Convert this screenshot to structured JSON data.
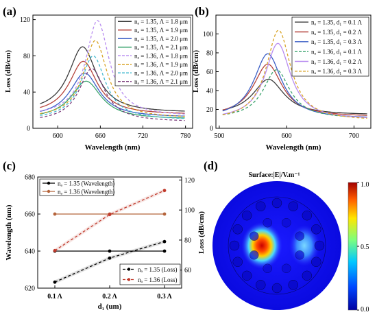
{
  "panels": {
    "a": {
      "label": "(a)"
    },
    "b": {
      "label": "(b)"
    },
    "c": {
      "label": "(c)"
    },
    "d": {
      "label": "(d)"
    }
  },
  "chart_data": [
    {
      "id": "a",
      "type": "line",
      "xlabel": "Wavelength (nm)",
      "ylabel": "Loss (dB/cm)",
      "xlim": [
        565,
        790
      ],
      "ylim": [
        0,
        125
      ],
      "xticks": [
        600,
        660,
        720,
        780
      ],
      "yticks": [
        0,
        40,
        80,
        120
      ],
      "legend_position": "top-right",
      "series": [
        {
          "name": "nₐ = 1.35, Λ = 1.8 μm",
          "color": "#3a3a3a",
          "dashed": false,
          "peak_x": 635,
          "peak_y": 90,
          "width": 24,
          "base": 17
        },
        {
          "name": "nₐ = 1.35, Λ = 1.9 μm",
          "color": "#b5433b",
          "dashed": false,
          "peak_x": 636,
          "peak_y": 74,
          "width": 24,
          "base": 15
        },
        {
          "name": "nₐ = 1.35, Λ = 2.0 μm",
          "color": "#3c5fc6",
          "dashed": false,
          "peak_x": 638,
          "peak_y": 61,
          "width": 25,
          "base": 12
        },
        {
          "name": "nₐ = 1.35, Λ = 2.1 μm",
          "color": "#39a36c",
          "dashed": false,
          "peak_x": 640,
          "peak_y": 52,
          "width": 26,
          "base": 10
        },
        {
          "name": "nₐ = 1.36, Λ = 1.8 μm",
          "color": "#b78bf0",
          "dashed": true,
          "peak_x": 656,
          "peak_y": 119,
          "width": 20,
          "base": 13
        },
        {
          "name": "nₐ = 1.36, Λ = 1.9 μm",
          "color": "#d8a325",
          "dashed": true,
          "peak_x": 653,
          "peak_y": 97,
          "width": 20,
          "base": 11
        },
        {
          "name": "nₐ = 1.36, Λ = 2.0 μm",
          "color": "#42b9cf",
          "dashed": true,
          "peak_x": 650,
          "peak_y": 80,
          "width": 21,
          "base": 9
        },
        {
          "name": "nₐ = 1.36, Λ = 2.1 μm",
          "color": "#7d3f7d",
          "dashed": true,
          "peak_x": 648,
          "peak_y": 66,
          "width": 22,
          "base": 7
        }
      ]
    },
    {
      "id": "b",
      "type": "line",
      "xlabel": "Wavelength (nm)",
      "ylabel": "Loss (dB/cm)",
      "xlim": [
        495,
        725
      ],
      "ylim": [
        0,
        120
      ],
      "xticks": [
        500,
        600,
        700
      ],
      "yticks": [
        0,
        20,
        40,
        60,
        80,
        100
      ],
      "legend_position": "top-right",
      "series": [
        {
          "name": "nₐ = 1.35, d₁ = 0.1 Λ",
          "color": "#3a3a3a",
          "dashed": false,
          "peak_x": 573,
          "peak_y": 52,
          "width": 28,
          "base": 14
        },
        {
          "name": "nₐ = 1.35, d₁ = 0.2 Λ",
          "color": "#b5433b",
          "dashed": false,
          "peak_x": 572,
          "peak_y": 68,
          "width": 26,
          "base": 12
        },
        {
          "name": "nₐ = 1.35, d₁ = 0.3 Λ",
          "color": "#3c5fc6",
          "dashed": false,
          "peak_x": 572,
          "peak_y": 79,
          "width": 25,
          "base": 10
        },
        {
          "name": "nₐ = 1.36, d₁ = 0.1 Λ",
          "color": "#39a36c",
          "dashed": true,
          "peak_x": 585,
          "peak_y": 62,
          "width": 24,
          "base": 10
        },
        {
          "name": "nₐ = 1.36, d₁ = 0.2 Λ",
          "color": "#b78bf0",
          "dashed": false,
          "peak_x": 587,
          "peak_y": 90,
          "width": 23,
          "base": 9
        },
        {
          "name": "nₐ = 1.36, d₁ = 0.3 Λ",
          "color": "#d8a325",
          "dashed": true,
          "peak_x": 588,
          "peak_y": 104,
          "width": 22,
          "base": 8
        }
      ]
    },
    {
      "id": "c",
      "type": "line",
      "xlabel": "d₁ (um)",
      "ylabel": "Wavelength (nm)",
      "y2label": "Loss (dB/cm)",
      "categories": [
        "0.1 Λ",
        "0.2 Λ",
        "0.3 Λ"
      ],
      "ylim": [
        620,
        680
      ],
      "yticks": [
        620,
        640,
        660,
        680
      ],
      "y2lim": [
        48,
        122
      ],
      "y2ticks": [
        60,
        80,
        100,
        120
      ],
      "series": [
        {
          "name": "nₐ = 1.35 (Wavelength)",
          "axis": "left",
          "color": "#000000",
          "dashed": false,
          "values": [
            640,
            640,
            640
          ]
        },
        {
          "name": "nₐ = 1.36 (Wavelength)",
          "axis": "left",
          "color": "#b5643b",
          "dashed": false,
          "values": [
            660,
            660,
            660
          ]
        },
        {
          "name": "nₐ = 1.35  (Loss)",
          "axis": "right",
          "color": "#000000",
          "dashed": true,
          "values": [
            52,
            68,
            79
          ]
        },
        {
          "name": "nₐ = 1.36  (Loss)",
          "axis": "right",
          "color": "#c0392b",
          "dashed": true,
          "values": [
            73,
            97,
            113
          ]
        }
      ]
    },
    {
      "id": "d",
      "type": "heatmap",
      "title": "Surface:|E|/V.m⁻¹",
      "colorbar_ticks": [
        0.0,
        0.5,
        1.0
      ],
      "colorbar_range": [
        0,
        1.0
      ]
    }
  ]
}
